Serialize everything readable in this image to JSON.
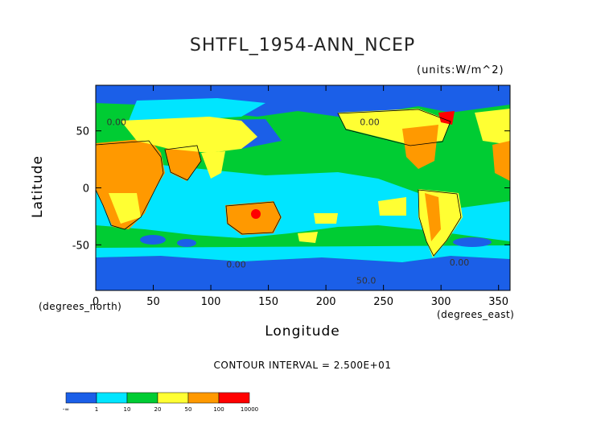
{
  "chart_data": {
    "type": "heatmap",
    "title": "SHTFL_1954-ANN_NCEP",
    "units": "(units:W/m^2)",
    "xlabel": "Longitude",
    "ylabel": "Latitude",
    "xunits_left": "(degrees_north)",
    "xunits_right": "(degrees_east)",
    "contour_interval": "CONTOUR INTERVAL = 2.500E+01",
    "xlim": [
      0,
      360
    ],
    "ylim": [
      -90,
      90
    ],
    "xticks": [
      0,
      50,
      100,
      150,
      200,
      250,
      300,
      350
    ],
    "xtick_labels": [
      "0",
      "50",
      "100",
      "150",
      "200",
      "250",
      "300",
      "350"
    ],
    "yticks": [
      50,
      0,
      -50
    ],
    "ytick_labels": [
      "50",
      "0",
      "-50"
    ],
    "contour_labels": [
      {
        "text": "0.00",
        "lon": 18,
        "lat": 55
      },
      {
        "text": "0.00",
        "lon": 238,
        "lat": 55
      },
      {
        "text": "0.00",
        "lon": 122,
        "lat": -70
      },
      {
        "text": "0.00",
        "lon": 316,
        "lat": -68
      },
      {
        "text": "50.0",
        "lon": 235,
        "lat": -84
      }
    ],
    "legend": {
      "levels": [
        "-∞",
        "1",
        "10",
        "20",
        "50",
        "100",
        "10000"
      ],
      "colors": [
        "#1b5fe8",
        "#00e5ff",
        "#00cc33",
        "#ffff33",
        "#ff9900",
        "#ff0000"
      ]
    }
  }
}
